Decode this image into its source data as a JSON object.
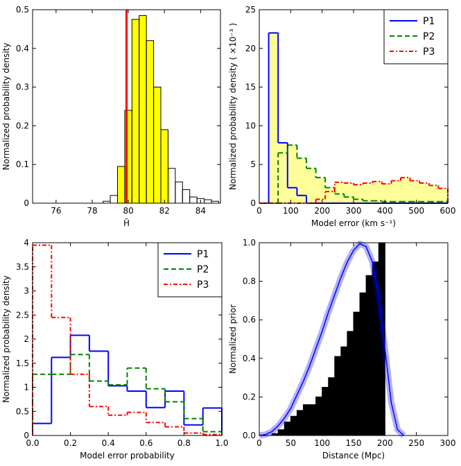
{
  "chart_data": [
    {
      "type": "histogram",
      "histtype": "step",
      "color": "black",
      "bins": [
        78.6,
        79.0,
        79.4,
        79.8,
        80.2,
        80.6,
        81.0,
        81.4,
        81.8,
        82.2,
        82.6,
        83.0,
        83.4,
        83.8,
        84.2,
        84.6,
        85.0
      ],
      "values": [
        0.005,
        0.02,
        0.095,
        0.24,
        0.475,
        0.485,
        0.42,
        0.3,
        0.19,
        0.09,
        0.055,
        0.035,
        0.016,
        0.012,
        0.009,
        0.005
      ],
      "fill_color": "yellow",
      "fill_range": [
        79.4,
        82.3
      ],
      "vline": {
        "x": 79.9,
        "color": "red"
      },
      "xlim": [
        74.7,
        85.1
      ],
      "xticks": [
        76,
        78,
        80,
        82,
        84
      ],
      "ylim": [
        0,
        0.5
      ],
      "yticks": [
        0,
        0.1,
        0.2,
        0.3,
        0.4,
        0.5
      ],
      "xlabel": "H̃",
      "ylabel": "Normalized probability density"
    },
    {
      "type": "histogram",
      "histtype": "step",
      "bins": [
        0,
        30,
        60,
        90,
        120,
        150,
        180,
        210,
        240,
        270,
        300,
        330,
        360,
        390,
        420,
        450,
        480,
        510,
        540,
        570,
        600
      ],
      "series": [
        {
          "name": "P1",
          "color": "blue",
          "linestyle": "solid",
          "values": [
            0,
            22,
            7.8,
            2,
            1,
            0,
            0,
            0,
            0,
            0,
            0,
            0,
            0,
            0,
            0,
            0,
            0,
            0,
            0,
            0
          ]
        },
        {
          "name": "P2",
          "color": "green",
          "linestyle": "dashed",
          "values": [
            0,
            0,
            6.5,
            7.5,
            5.8,
            4.5,
            3.3,
            2.0,
            1.2,
            0.8,
            0.5,
            0.3,
            0.3,
            0.2,
            0.2,
            0.2,
            0.2,
            0.2,
            0.2,
            0.2
          ]
        },
        {
          "name": "P3",
          "color": "red",
          "linestyle": "dashdot",
          "values": [
            0,
            0,
            0,
            0,
            0,
            0,
            0.5,
            1.5,
            2.7,
            2.6,
            2.4,
            2.6,
            2.8,
            2.5,
            2.9,
            3.3,
            2.9,
            2.6,
            2.3,
            1.9
          ]
        }
      ],
      "fill_color": "#ffff99",
      "legend": "upper right",
      "xlim": [
        0,
        600
      ],
      "xticks": [
        0,
        100,
        200,
        300,
        400,
        500,
        600
      ],
      "ylim": [
        0,
        25
      ],
      "yticks": [
        0,
        5,
        10,
        15,
        20,
        25
      ],
      "xlabel": "Model error (km s⁻¹)",
      "ylabel": "Normalized probability density ( ×10⁻³ )"
    },
    {
      "type": "histogram",
      "histtype": "step",
      "bins": [
        0,
        0.1,
        0.2,
        0.3,
        0.4,
        0.5,
        0.6,
        0.7,
        0.8,
        0.9,
        1.0
      ],
      "series": [
        {
          "name": "P1",
          "color": "blue",
          "linestyle": "solid",
          "values": [
            0.25,
            1.62,
            2.08,
            1.75,
            1.03,
            0.92,
            0.58,
            0.92,
            0.22,
            0.57
          ]
        },
        {
          "name": "P2",
          "color": "green",
          "linestyle": "dashed",
          "values": [
            1.27,
            1.27,
            1.68,
            1.13,
            1.05,
            1.4,
            0.97,
            0.7,
            0.35,
            0.08
          ]
        },
        {
          "name": "P3",
          "color": "red",
          "linestyle": "dashdot",
          "values": [
            3.95,
            2.45,
            1.27,
            0.6,
            0.42,
            0.48,
            0.27,
            0.18,
            0.05,
            0.02
          ]
        }
      ],
      "legend": "upper right",
      "xlim": [
        0,
        1
      ],
      "xticks": [
        {
          "value": 0,
          "label": "0.0"
        },
        0.2,
        0.4,
        0.6,
        0.8,
        {
          "value": 1,
          "label": "1.0"
        }
      ],
      "ylim": [
        0,
        4
      ],
      "yticks": [
        0,
        0.5,
        1,
        1.5,
        2,
        2.5,
        3,
        3.5,
        4
      ],
      "xlabel": "Model error probability",
      "ylabel": "Normalized probability density"
    },
    {
      "type": "histogram",
      "histtype": "filled",
      "color": "black",
      "bins": [
        20,
        30,
        40,
        50,
        60,
        70,
        80,
        90,
        100,
        110,
        120,
        130,
        140,
        150,
        160,
        170,
        180,
        190,
        200
      ],
      "values": [
        0.01,
        0.03,
        0.07,
        0.1,
        0.13,
        0.16,
        0.16,
        0.2,
        0.25,
        0.3,
        0.41,
        0.46,
        0.54,
        0.64,
        0.74,
        0.83,
        0.9,
        1.0
      ],
      "curve": {
        "color": "blue",
        "x": [
          0,
          10,
          20,
          30,
          40,
          50,
          60,
          70,
          80,
          90,
          100,
          110,
          120,
          130,
          140,
          150,
          160,
          170,
          180,
          190,
          200,
          210,
          220,
          230
        ],
        "values": [
          0,
          0.005,
          0.02,
          0.05,
          0.09,
          0.14,
          0.21,
          0.28,
          0.36,
          0.45,
          0.54,
          0.64,
          0.73,
          0.82,
          0.9,
          0.96,
          0.995,
          0.98,
          0.9,
          0.72,
          0.45,
          0.17,
          0.03,
          0
        ]
      },
      "xlim": [
        0,
        300
      ],
      "xticks": [
        0,
        50,
        100,
        150,
        200,
        250,
        300
      ],
      "ylim": [
        0,
        1
      ],
      "yticks": [
        {
          "value": 0,
          "label": "0.0"
        },
        0.2,
        0.4,
        0.6,
        0.8,
        {
          "value": 1,
          "label": "1.0"
        }
      ],
      "xlabel": "Distance (Mpc)",
      "ylabel": "Normalized prior"
    }
  ]
}
